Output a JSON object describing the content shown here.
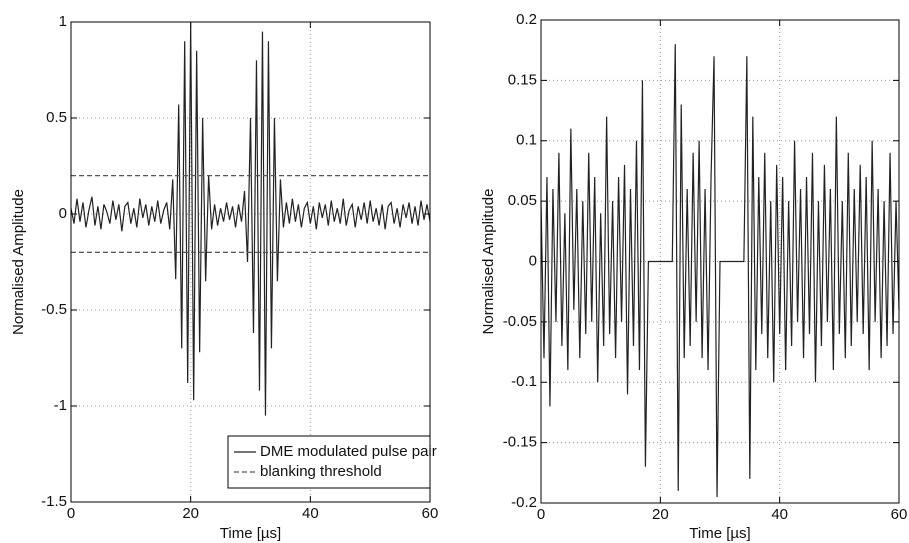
{
  "chart_data": [
    {
      "type": "line",
      "ylabel": "Normalised Amplitude",
      "xlabel": "Time [µs]",
      "xlim": [
        0,
        60
      ],
      "xticks": [
        0,
        20,
        40,
        60
      ],
      "ylim": [
        -1.5,
        1
      ],
      "yticks": [
        -1.5,
        -1,
        -0.5,
        0,
        0.5,
        1
      ],
      "grid": true,
      "legend": "lower right",
      "x": [
        0,
        0.5,
        1,
        1.5,
        2,
        2.5,
        3,
        3.5,
        4,
        4.5,
        5,
        5.5,
        6,
        6.5,
        7,
        7.5,
        8,
        8.5,
        9,
        9.5,
        10,
        10.5,
        11,
        11.5,
        12,
        12.5,
        13,
        13.5,
        14,
        14.5,
        15,
        15.5,
        16,
        16.5,
        17,
        17.5,
        18,
        18.5,
        19,
        19.5,
        20,
        20.5,
        21,
        21.5,
        22,
        22.5,
        23,
        23.5,
        24,
        24.5,
        25,
        25.5,
        26,
        26.5,
        27,
        27.5,
        28,
        28.5,
        29,
        29.5,
        30,
        30.5,
        31,
        31.5,
        32,
        32.5,
        33,
        33.5,
        34,
        34.5,
        35,
        35.5,
        36,
        36.5,
        37,
        37.5,
        38,
        38.5,
        39,
        39.5,
        40,
        40.5,
        41,
        41.5,
        42,
        42.5,
        43,
        43.5,
        44,
        44.5,
        45,
        45.5,
        46,
        46.5,
        47,
        47.5,
        48,
        48.5,
        49,
        49.5,
        50,
        50.5,
        51,
        51.5,
        52,
        52.5,
        53,
        53.5,
        54,
        54.5,
        55,
        55.5,
        56,
        56.5,
        57,
        57.5,
        58,
        58.5,
        59,
        59.5,
        60
      ],
      "series": [
        {
          "name": "DME modulated pulse pair",
          "color": "#222222",
          "values": [
            0.03,
            -0.05,
            0.08,
            -0.04,
            0.06,
            -0.07,
            0.02,
            0.09,
            -0.06,
            0.04,
            -0.08,
            0.05,
            0.01,
            -0.05,
            0.07,
            -0.03,
            0.05,
            -0.09,
            0.04,
            0.06,
            -0.05,
            0.03,
            -0.07,
            0.08,
            -0.02,
            0.05,
            -0.06,
            0.04,
            -0.04,
            0.07,
            -0.05,
            0.02,
            0.06,
            -0.08,
            0.18,
            -0.34,
            0.57,
            -0.7,
            0.9,
            -0.88,
            1,
            -0.97,
            0.85,
            -0.72,
            0.5,
            -0.35,
            0.2,
            -0.08,
            0.05,
            -0.06,
            0.03,
            -0.04,
            0.06,
            -0.03,
            0.04,
            -0.07,
            0.05,
            -0.04,
            0.12,
            -0.25,
            0.5,
            -0.62,
            0.8,
            -0.92,
            0.95,
            -1.05,
            0.9,
            -0.7,
            0.5,
            -0.35,
            0.18,
            -0.07,
            0.06,
            -0.05,
            0.08,
            -0.04,
            0.05,
            -0.07,
            0.03,
            0.06,
            -0.05,
            0.04,
            -0.08,
            0.06,
            -0.02,
            0.05,
            -0.06,
            0.07,
            -0.04,
            0.03,
            -0.05,
            0.08,
            -0.06,
            0.02,
            0.05,
            -0.07,
            0.04,
            -0.03,
            0.06,
            -0.05,
            0.07,
            -0.04,
            0.03,
            -0.06,
            0.05,
            -0.08,
            0.04,
            0.06,
            -0.05,
            0.03,
            -0.07,
            0.05,
            -0.02,
            0.06,
            -0.05,
            0.04,
            -0.06,
            0.07,
            -0.03,
            0.05,
            -0.04
          ]
        },
        {
          "name": "blanking threshold",
          "color": "#555555",
          "dashed": true,
          "levels": [
            0.2,
            -0.2
          ]
        }
      ]
    },
    {
      "type": "line",
      "ylabel": "Normalised Amplitude",
      "xlabel": "Time [µs]",
      "xlim": [
        0,
        60
      ],
      "xticks": [
        0,
        20,
        40,
        60
      ],
      "ylim": [
        -0.2,
        0.2
      ],
      "yticks": [
        -0.2,
        -0.15,
        -0.1,
        -0.05,
        0,
        0.05,
        0.1,
        0.15,
        0.2
      ],
      "grid": true,
      "x": [
        0,
        0.5,
        1,
        1.5,
        2,
        2.5,
        3,
        3.5,
        4,
        4.5,
        5,
        5.5,
        6,
        6.5,
        7,
        7.5,
        8,
        8.5,
        9,
        9.5,
        10,
        10.5,
        11,
        11.5,
        12,
        12.5,
        13,
        13.5,
        14,
        14.5,
        15,
        15.5,
        16,
        16.5,
        17,
        17.5,
        18,
        18.5,
        19,
        19.5,
        20,
        20.5,
        21,
        21.5,
        22,
        22.5,
        23,
        23.5,
        24,
        24.5,
        25,
        25.5,
        26,
        26.5,
        27,
        27.5,
        28,
        28.5,
        29,
        29.5,
        30,
        30.5,
        31,
        31.5,
        32,
        32.5,
        33,
        33.5,
        34,
        34.5,
        35,
        35.5,
        36,
        36.5,
        37,
        37.5,
        38,
        38.5,
        39,
        39.5,
        40,
        40.5,
        41,
        41.5,
        42,
        42.5,
        43,
        43.5,
        44,
        44.5,
        45,
        45.5,
        46,
        46.5,
        47,
        47.5,
        48,
        48.5,
        49,
        49.5,
        50,
        50.5,
        51,
        51.5,
        52,
        52.5,
        53,
        53.5,
        54,
        54.5,
        55,
        55.5,
        56,
        56.5,
        57,
        57.5,
        58,
        58.5,
        59,
        59.5,
        60
      ],
      "series": [
        {
          "color": "#222222",
          "values": [
            0.05,
            -0.08,
            0.07,
            -0.12,
            0.06,
            -0.05,
            0.09,
            -0.07,
            0.04,
            -0.09,
            0.11,
            -0.04,
            0.06,
            -0.08,
            0.05,
            -0.06,
            0.09,
            -0.05,
            0.07,
            -0.1,
            0.04,
            -0.07,
            0.12,
            -0.06,
            0.05,
            -0.08,
            0.07,
            -0.05,
            0.08,
            -0.11,
            0.06,
            -0.07,
            0.1,
            -0.09,
            0.15,
            -0.17,
            0,
            0,
            0,
            0,
            0,
            0,
            0,
            0,
            0,
            0.18,
            -0.19,
            0.13,
            -0.08,
            0.06,
            -0.07,
            0.09,
            -0.05,
            0.1,
            -0.08,
            0.06,
            -0.09,
            0.07,
            0.17,
            -0.195,
            0,
            0,
            0,
            0,
            0,
            0,
            0,
            0,
            0,
            0.17,
            -0.18,
            0.12,
            -0.09,
            0.07,
            -0.06,
            0.09,
            -0.08,
            0.05,
            -0.1,
            0.08,
            -0.06,
            0.07,
            -0.09,
            0.05,
            -0.07,
            0.1,
            -0.05,
            0.06,
            -0.08,
            0.07,
            -0.06,
            0.09,
            -0.1,
            0.05,
            -0.07,
            0.08,
            -0.05,
            0.06,
            -0.09,
            0.12,
            -0.06,
            0.05,
            -0.08,
            0.09,
            -0.07,
            0.06,
            -0.05,
            0.08,
            -0.06,
            0.07,
            -0.09,
            0.1,
            -0.05,
            0.06,
            -0.08,
            0.05,
            -0.07,
            0.09,
            -0.06,
            0.05,
            -0.04
          ]
        }
      ]
    }
  ]
}
